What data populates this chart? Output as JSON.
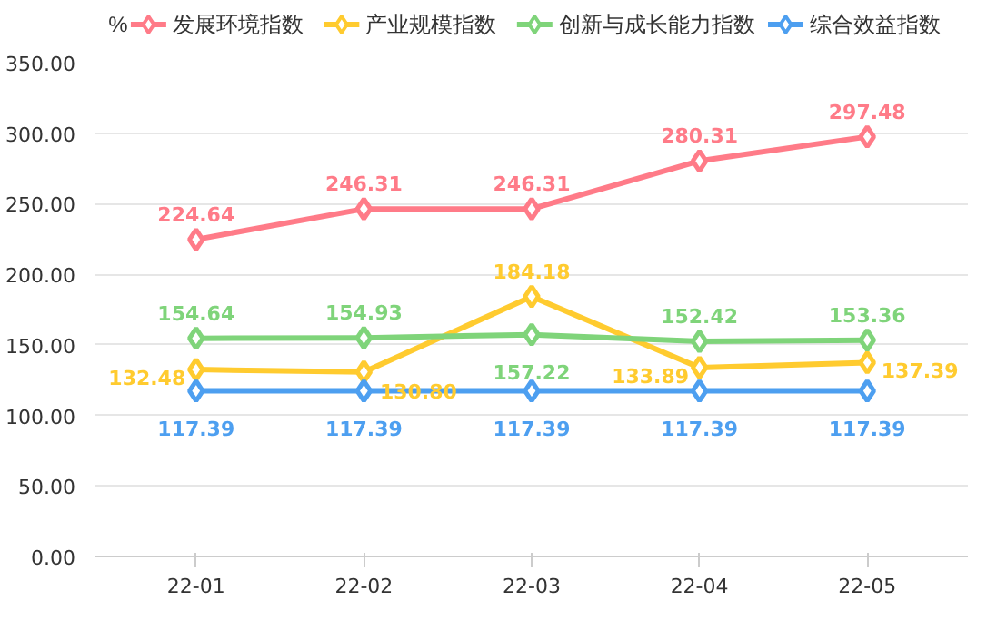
{
  "chart_data": {
    "type": "line",
    "ylabel": "%",
    "categories": [
      "22-01",
      "22-02",
      "22-03",
      "22-04",
      "22-05"
    ],
    "series": [
      {
        "name": "发展环境指数",
        "color": "#ff7b88",
        "values": [
          224.64,
          246.31,
          246.31,
          280.31,
          297.48
        ],
        "value_labels": [
          "224.64",
          "246.31",
          "246.31",
          "280.31",
          "297.48"
        ]
      },
      {
        "name": "产业规模指数",
        "color": "#ffcb2f",
        "values": [
          132.48,
          130.8,
          184.18,
          133.89,
          137.39
        ],
        "value_labels": [
          "132.48",
          "130.80",
          "184.18",
          "133.89",
          "137.39"
        ]
      },
      {
        "name": "创新与成长能力指数",
        "color": "#7fd47a",
        "values": [
          154.64,
          154.93,
          157.22,
          152.42,
          153.36
        ],
        "value_labels": [
          "154.64",
          "154.93",
          "157.22",
          "152.42",
          "153.36"
        ]
      },
      {
        "name": "综合效益指数",
        "color": "#4d9ff0",
        "values": [
          117.39,
          117.39,
          117.39,
          117.39,
          117.39
        ],
        "value_labels": [
          "117.39",
          "117.39",
          "117.39",
          "117.39",
          "117.39"
        ]
      }
    ],
    "ylim": [
      0,
      350
    ],
    "yticks": [
      {
        "value": 0,
        "label": "0.00"
      },
      {
        "value": 50,
        "label": "50.00"
      },
      {
        "value": 100,
        "label": "100.00"
      },
      {
        "value": 150,
        "label": "150.00"
      },
      {
        "value": 200,
        "label": "200.00"
      },
      {
        "value": 250,
        "label": "250.00"
      },
      {
        "value": 300,
        "label": "300.00"
      },
      {
        "value": 350,
        "label": "350.00"
      }
    ],
    "grid": "y",
    "legend": "top",
    "marker": "diamond",
    "line_style": "solid"
  }
}
